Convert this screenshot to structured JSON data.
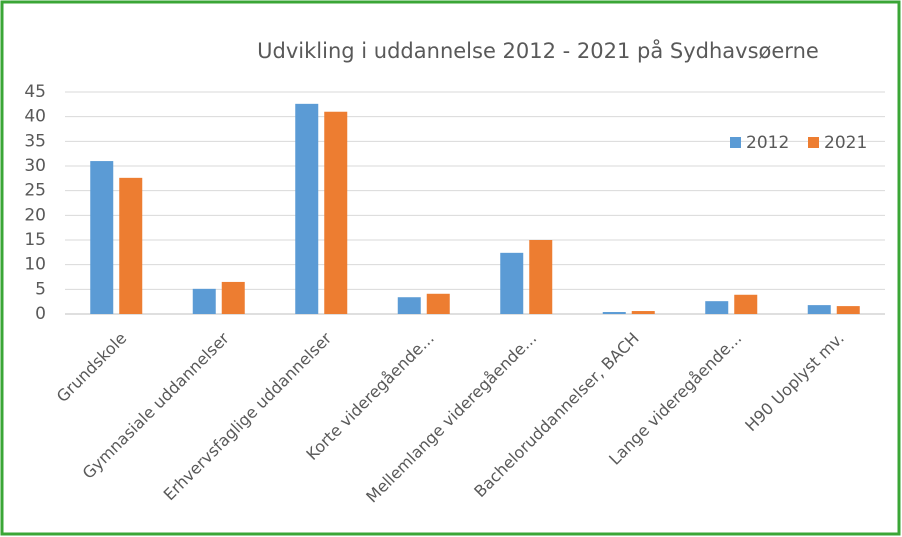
{
  "chart_data": {
    "type": "bar",
    "title": "Udvikling i uddannelse 2012 - 2021 på Sydhavsøerne",
    "categories": [
      "Grundskole",
      "Gymnasiale uddannelser",
      "Erhvervsfaglige uddannelser",
      "Korte videregående...",
      "Mellemlange videregående...",
      "Bacheloruddannelser, BACH",
      "Lange videregående...",
      "H90 Uoplyst mv."
    ],
    "series": [
      {
        "name": "2012",
        "color": "#5b9bd5",
        "values": [
          31.0,
          5.1,
          42.6,
          3.4,
          12.4,
          0.4,
          2.6,
          1.8
        ]
      },
      {
        "name": "2021",
        "color": "#ed7d31",
        "values": [
          27.6,
          6.5,
          41.0,
          4.1,
          15.0,
          0.6,
          3.9,
          1.6
        ]
      }
    ],
    "ylim": [
      0,
      45
    ],
    "yticks": [
      0,
      5,
      10,
      15,
      20,
      25,
      30,
      35,
      40,
      45
    ],
    "grid": true,
    "legend": "upper right"
  }
}
